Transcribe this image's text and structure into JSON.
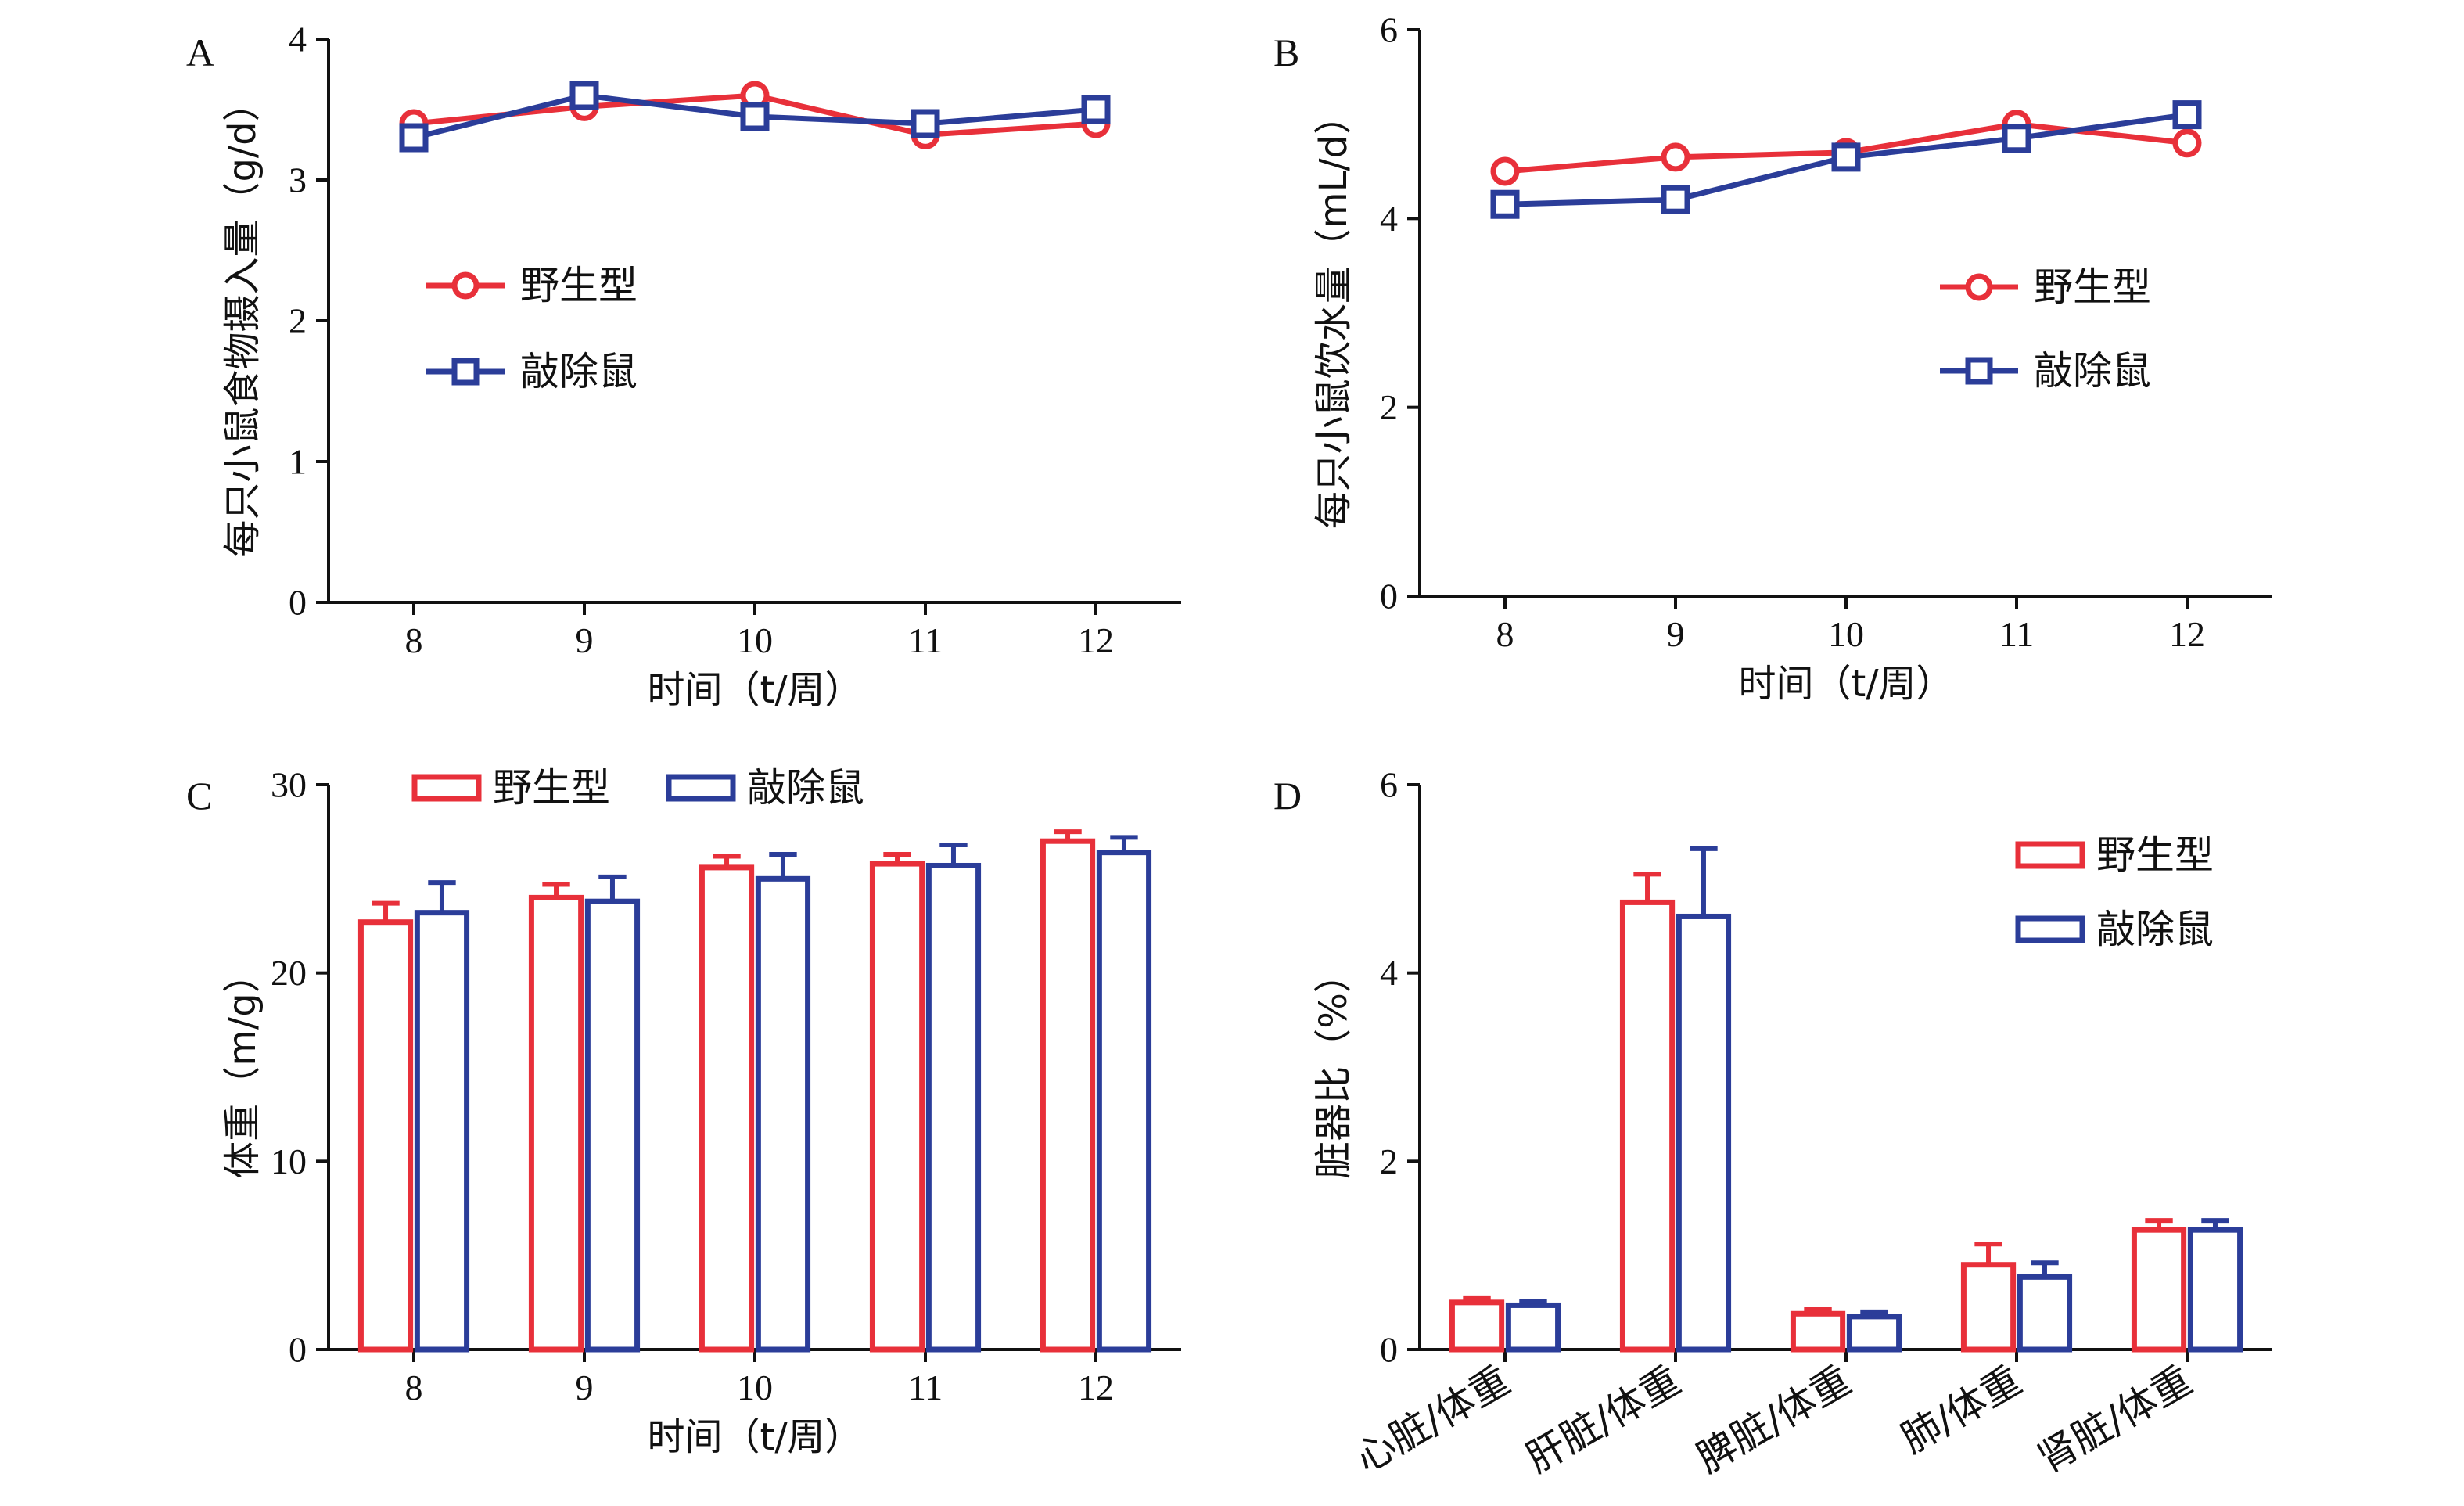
{
  "chart_data": [
    {
      "panel": "A",
      "type": "line",
      "x": [
        8,
        9,
        10,
        11,
        12
      ],
      "xlabel": "时间（t/周）",
      "ylabel": "每只小鼠食物摄入量（g/d）",
      "ylim": [
        0,
        4
      ],
      "yticks": [
        0,
        1,
        2,
        3,
        4
      ],
      "legend_position": "middle-left",
      "series": [
        {
          "name": "野生型",
          "color": "#e8303a",
          "marker": "circle",
          "values": [
            3.4,
            3.52,
            3.6,
            3.32,
            3.4
          ]
        },
        {
          "name": "敲除鼠",
          "color": "#2b3d99",
          "marker": "square",
          "values": [
            3.3,
            3.6,
            3.45,
            3.4,
            3.5
          ]
        }
      ]
    },
    {
      "panel": "B",
      "type": "line",
      "x": [
        8,
        9,
        10,
        11,
        12
      ],
      "xlabel": "时间（t/周）",
      "ylabel": "每只小鼠饮水量（mL/d）",
      "ylim": [
        0,
        6
      ],
      "yticks": [
        0,
        2,
        4,
        6
      ],
      "legend_position": "middle-right",
      "series": [
        {
          "name": "野生型",
          "color": "#e8303a",
          "marker": "circle",
          "values": [
            4.5,
            4.65,
            4.7,
            5.0,
            4.8
          ]
        },
        {
          "name": "敲除鼠",
          "color": "#2b3d99",
          "marker": "square",
          "values": [
            4.15,
            4.2,
            4.65,
            4.85,
            5.1
          ]
        }
      ]
    },
    {
      "panel": "C",
      "type": "bar",
      "categories": [
        "8",
        "9",
        "10",
        "11",
        "12"
      ],
      "xlabel": "时间（t/周）",
      "ylabel": "体重（m/g）",
      "ylim": [
        0,
        30
      ],
      "yticks": [
        0,
        10,
        20,
        30
      ],
      "legend_position": "top",
      "series": [
        {
          "name": "野生型",
          "color": "#e8303a",
          "values": [
            22.7,
            24.0,
            25.6,
            25.8,
            27.0
          ],
          "errors": [
            1.0,
            0.7,
            0.6,
            0.5,
            0.5
          ]
        },
        {
          "name": "敲除鼠",
          "color": "#2b3d99",
          "values": [
            23.2,
            23.8,
            25.0,
            25.7,
            26.4
          ],
          "errors": [
            1.6,
            1.3,
            1.3,
            1.1,
            0.8
          ]
        }
      ]
    },
    {
      "panel": "D",
      "type": "bar",
      "categories": [
        "心脏/体重",
        "肝脏/体重",
        "脾脏/体重",
        "肺/体重",
        "肾脏/体重"
      ],
      "ylabel": "脏器比（%）",
      "ylim": [
        0,
        6
      ],
      "yticks": [
        0,
        2,
        4,
        6
      ],
      "legend_position": "top-right",
      "series": [
        {
          "name": "野生型",
          "color": "#e8303a",
          "values": [
            0.5,
            4.75,
            0.38,
            0.9,
            1.27
          ],
          "errors": [
            0.05,
            0.3,
            0.05,
            0.22,
            0.1
          ]
        },
        {
          "name": "敲除鼠",
          "color": "#2b3d99",
          "values": [
            0.47,
            4.6,
            0.35,
            0.77,
            1.27
          ],
          "errors": [
            0.04,
            0.72,
            0.05,
            0.15,
            0.1
          ]
        }
      ]
    }
  ]
}
